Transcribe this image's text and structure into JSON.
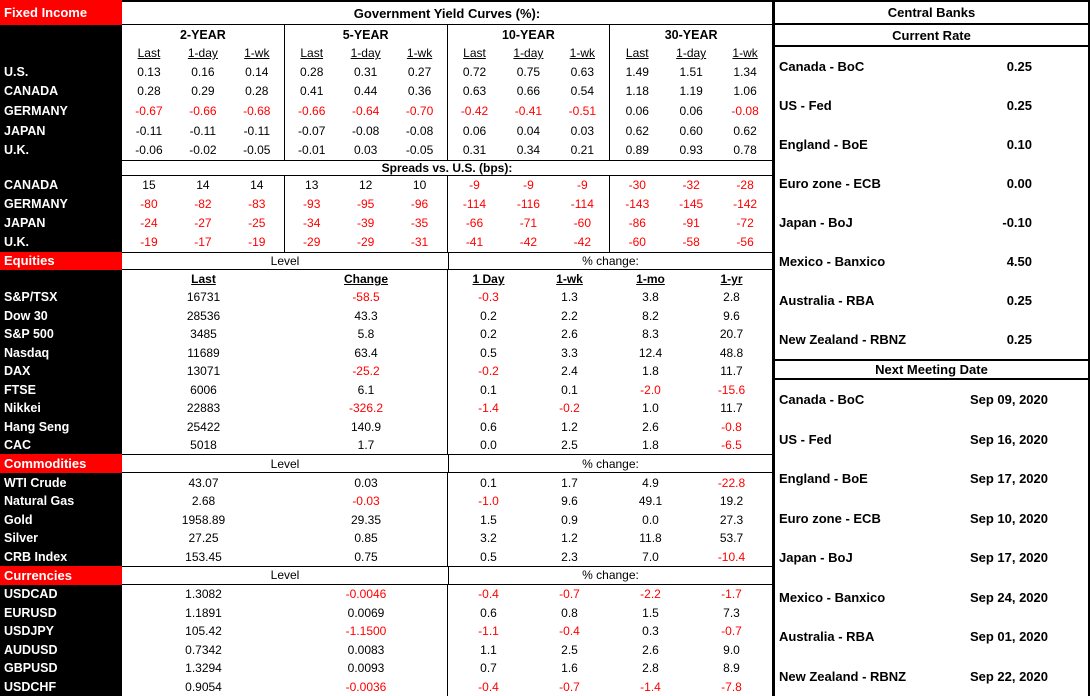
{
  "colors": {
    "section_header_bg": "#FF0000",
    "negative_text": "#FF0000",
    "row_label_bg": "#000000"
  },
  "fixed_income": {
    "section_label": "Fixed Income",
    "title": "Government Yield Curves (%):",
    "groups": [
      "2-YEAR",
      "5-YEAR",
      "10-YEAR",
      "30-YEAR"
    ],
    "subheaders": [
      "Last",
      "1-day",
      "1-wk"
    ],
    "rows": [
      {
        "label": "U.S.",
        "values": [
          "0.13",
          "0.16",
          "0.14",
          "0.28",
          "0.31",
          "0.27",
          "0.72",
          "0.75",
          "0.63",
          "1.49",
          "1.51",
          "1.34"
        ]
      },
      {
        "label": "CANADA",
        "values": [
          "0.28",
          "0.29",
          "0.28",
          "0.41",
          "0.44",
          "0.36",
          "0.63",
          "0.66",
          "0.54",
          "1.18",
          "1.19",
          "1.06"
        ]
      },
      {
        "label": "GERMANY",
        "values": [
          "-0.67",
          "-0.66",
          "-0.68",
          "-0.66",
          "-0.64",
          "-0.70",
          "-0.42",
          "-0.41",
          "-0.51",
          "0.06",
          "0.06",
          "-0.08"
        ],
        "red": [
          1,
          1,
          1,
          1,
          1,
          1,
          1,
          1,
          1,
          0,
          0,
          1
        ]
      },
      {
        "label": "JAPAN",
        "values": [
          "-0.11",
          "-0.11",
          "-0.11",
          "-0.07",
          "-0.08",
          "-0.08",
          "0.06",
          "0.04",
          "0.03",
          "0.62",
          "0.60",
          "0.62"
        ],
        "red": [
          0,
          0,
          0,
          0,
          0,
          0,
          0,
          0,
          0,
          0,
          0,
          0
        ]
      },
      {
        "label": "U.K.",
        "values": [
          "-0.06",
          "-0.02",
          "-0.05",
          "-0.01",
          "0.03",
          "-0.05",
          "0.31",
          "0.34",
          "0.21",
          "0.89",
          "0.93",
          "0.78"
        ],
        "red": [
          0,
          0,
          0,
          0,
          0,
          0,
          0,
          0,
          0,
          0,
          0,
          0
        ]
      }
    ],
    "spreads_title": "Spreads vs. U.S. (bps):",
    "spread_rows": [
      {
        "label": "CANADA",
        "values": [
          "15",
          "14",
          "14",
          "13",
          "12",
          "10",
          "-9",
          "-9",
          "-9",
          "-30",
          "-32",
          "-28"
        ]
      },
      {
        "label": "GERMANY",
        "values": [
          "-80",
          "-82",
          "-83",
          "-93",
          "-95",
          "-96",
          "-114",
          "-116",
          "-114",
          "-143",
          "-145",
          "-142"
        ]
      },
      {
        "label": "JAPAN",
        "values": [
          "-24",
          "-27",
          "-25",
          "-34",
          "-39",
          "-35",
          "-66",
          "-71",
          "-60",
          "-86",
          "-91",
          "-72"
        ]
      },
      {
        "label": "U.K.",
        "values": [
          "-19",
          "-17",
          "-19",
          "-29",
          "-29",
          "-31",
          "-41",
          "-42",
          "-42",
          "-60",
          "-58",
          "-56"
        ]
      }
    ]
  },
  "market_sections": [
    {
      "section_label": "Equities",
      "level_label": "Level",
      "pct_label": "% change:",
      "col_headers": [
        "Last",
        "Change",
        "1 Day",
        "1-wk",
        "1-mo",
        "1-yr"
      ],
      "rows": [
        {
          "label": "S&P/TSX",
          "values": [
            "16731",
            "-58.5",
            "-0.3",
            "1.3",
            "3.8",
            "2.8"
          ]
        },
        {
          "label": "Dow 30",
          "values": [
            "28536",
            "43.3",
            "0.2",
            "2.2",
            "8.2",
            "9.6"
          ]
        },
        {
          "label": "S&P 500",
          "values": [
            "3485",
            "5.8",
            "0.2",
            "2.6",
            "8.3",
            "20.7"
          ]
        },
        {
          "label": "Nasdaq",
          "values": [
            "11689",
            "63.4",
            "0.5",
            "3.3",
            "12.4",
            "48.8"
          ]
        },
        {
          "label": "DAX",
          "values": [
            "13071",
            "-25.2",
            "-0.2",
            "2.4",
            "1.8",
            "11.7"
          ]
        },
        {
          "label": "FTSE",
          "values": [
            "6006",
            "6.1",
            "0.1",
            "0.1",
            "-2.0",
            "-15.6"
          ]
        },
        {
          "label": "Nikkei",
          "values": [
            "22883",
            "-326.2",
            "-1.4",
            "-0.2",
            "1.0",
            "11.7"
          ]
        },
        {
          "label": "Hang Seng",
          "values": [
            "25422",
            "140.9",
            "0.6",
            "1.2",
            "2.6",
            "-0.8"
          ]
        },
        {
          "label": "CAC",
          "values": [
            "5018",
            "1.7",
            "0.0",
            "2.5",
            "1.8",
            "-6.5"
          ]
        }
      ]
    },
    {
      "section_label": "Commodities",
      "level_label": "Level",
      "pct_label": "% change:",
      "rows": [
        {
          "label": "WTI Crude",
          "values": [
            "43.07",
            "0.03",
            "0.1",
            "1.7",
            "4.9",
            "-22.8"
          ]
        },
        {
          "label": "Natural Gas",
          "values": [
            "2.68",
            "-0.03",
            "-1.0",
            "9.6",
            "49.1",
            "19.2"
          ]
        },
        {
          "label": "Gold",
          "values": [
            "1958.89",
            "29.35",
            "1.5",
            "0.9",
            "0.0",
            "27.3"
          ]
        },
        {
          "label": "Silver",
          "values": [
            "27.25",
            "0.85",
            "3.2",
            "1.2",
            "11.8",
            "53.7"
          ]
        },
        {
          "label": "CRB Index",
          "values": [
            "153.45",
            "0.75",
            "0.5",
            "2.3",
            "7.0",
            "-10.4"
          ]
        }
      ]
    },
    {
      "section_label": "Currencies",
      "level_label": "Level",
      "pct_label": "% change:",
      "rows": [
        {
          "label": "USDCAD",
          "values": [
            "1.3082",
            "-0.0046",
            "-0.4",
            "-0.7",
            "-2.2",
            "-1.7"
          ]
        },
        {
          "label": "EURUSD",
          "values": [
            "1.1891",
            "0.0069",
            "0.6",
            "0.8",
            "1.5",
            "7.3"
          ]
        },
        {
          "label": "USDJPY",
          "values": [
            "105.42",
            "-1.1500",
            "-1.1",
            "-0.4",
            "0.3",
            "-0.7"
          ]
        },
        {
          "label": "AUDUSD",
          "values": [
            "0.7342",
            "0.0083",
            "1.1",
            "2.5",
            "2.6",
            "9.0"
          ]
        },
        {
          "label": "GBPUSD",
          "values": [
            "1.3294",
            "0.0093",
            "0.7",
            "1.6",
            "2.8",
            "8.9"
          ]
        },
        {
          "label": "USDCHF",
          "values": [
            "0.9054",
            "-0.0036",
            "-0.4",
            "-0.7",
            "-1.4",
            "-7.8"
          ]
        }
      ]
    }
  ],
  "central_banks": {
    "title": "Central Banks",
    "current_rate": {
      "header": "Current Rate",
      "items": [
        {
          "label": "Canada - BoC",
          "value": "0.25"
        },
        {
          "label": "US - Fed",
          "value": "0.25"
        },
        {
          "label": "England - BoE",
          "value": "0.10"
        },
        {
          "label": "Euro zone - ECB",
          "value": "0.00"
        },
        {
          "label": "Japan - BoJ",
          "value": "-0.10"
        },
        {
          "label": "Mexico - Banxico",
          "value": "4.50"
        },
        {
          "label": "Australia - RBA",
          "value": "0.25"
        },
        {
          "label": "New Zealand - RBNZ",
          "value": "0.25"
        }
      ]
    },
    "next_meeting": {
      "header": "Next Meeting Date",
      "items": [
        {
          "label": "Canada - BoC",
          "value": "Sep 09, 2020"
        },
        {
          "label": "US - Fed",
          "value": "Sep 16, 2020"
        },
        {
          "label": "England - BoE",
          "value": "Sep 17, 2020"
        },
        {
          "label": "Euro zone - ECB",
          "value": "Sep 10, 2020"
        },
        {
          "label": "Japan - BoJ",
          "value": "Sep 17, 2020"
        },
        {
          "label": "Mexico - Banxico",
          "value": "Sep 24, 2020"
        },
        {
          "label": "Australia - RBA",
          "value": "Sep 01, 2020"
        },
        {
          "label": "New Zealand - RBNZ",
          "value": "Sep 22, 2020"
        }
      ]
    }
  }
}
